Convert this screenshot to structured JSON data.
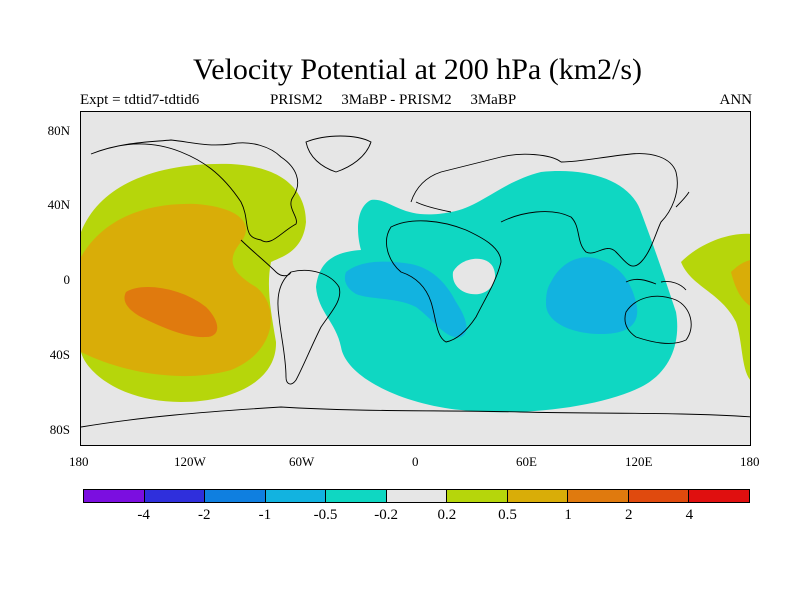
{
  "title": "Velocity Potential at 200 hPa (km2/s)",
  "subtitle": {
    "left": "Expt = tdtid7-tdtid6",
    "center": "PRISM2     3MaBP - PRISM2     3MaBP",
    "right": "ANN"
  },
  "y_ticks": [
    "80N",
    "40N",
    "0",
    "40S",
    "80S"
  ],
  "x_ticks": [
    "180",
    "120W",
    "60W",
    "0",
    "60E",
    "120E",
    "180"
  ],
  "colorbar": {
    "colors": [
      "#7b0ee0",
      "#2f2fdc",
      "#0f7fe0",
      "#12b3e0",
      "#0fd7c2",
      "#e6e6e6",
      "#b6d60b",
      "#d9ad08",
      "#e07a0e",
      "#e04a0e",
      "#e00f0f"
    ],
    "labels": [
      "-4",
      "-2",
      "-1",
      "-0.5",
      "-0.2",
      "0.2",
      "0.5",
      "1",
      "2",
      "4"
    ]
  },
  "map_colors": {
    "background": "#e6e6e6",
    "level_neg_02": "#0fd7c2",
    "level_neg_05": "#12b3e0",
    "level_pos_02": "#b6d60b",
    "level_pos_05": "#d9ad08",
    "level_pos_1": "#e07a0e",
    "coastline": "#000000"
  }
}
